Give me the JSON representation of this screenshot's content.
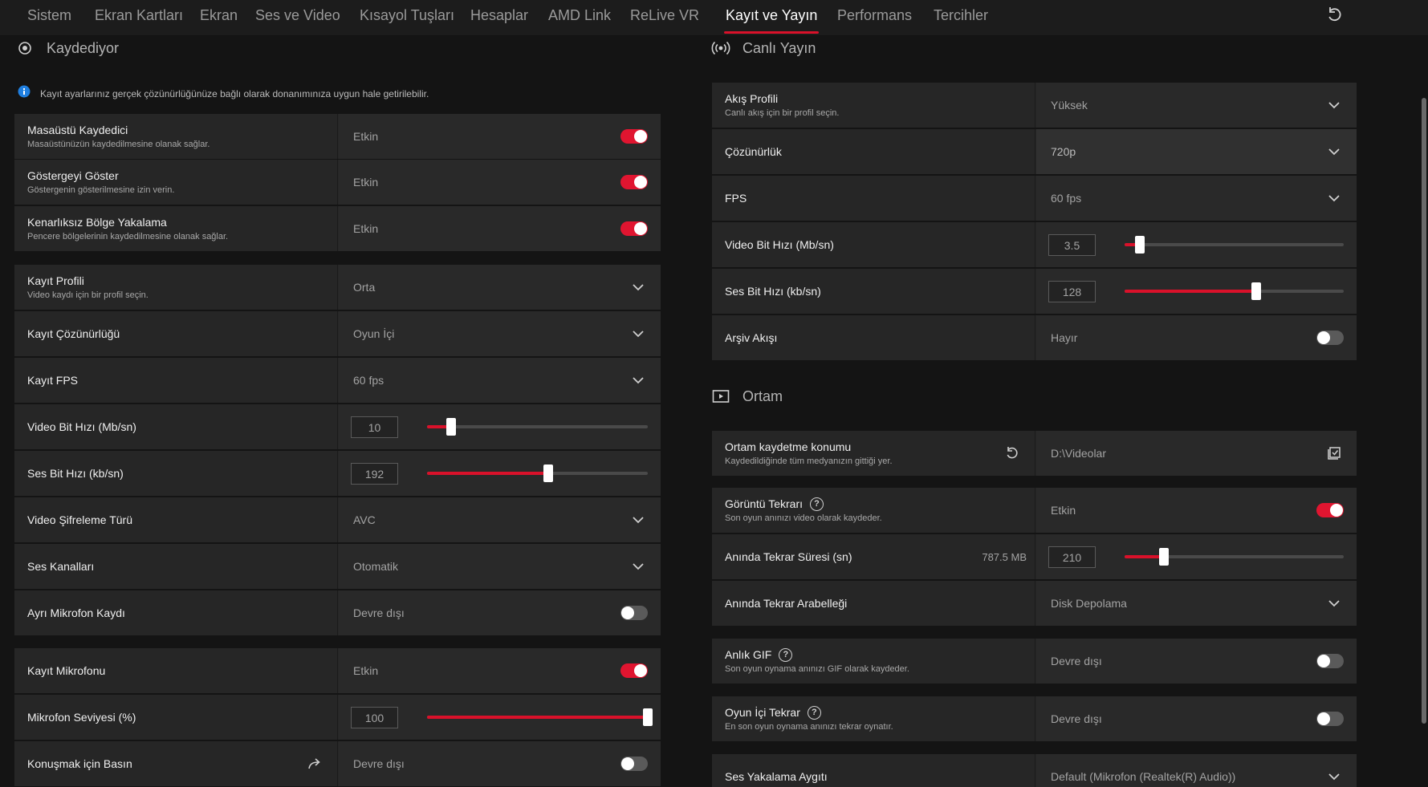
{
  "nav": {
    "tabs": [
      "Sistem",
      "Ekran Kartları",
      "Ekran",
      "Ses ve Video",
      "Kısayol Tuşları",
      "Hesaplar",
      "AMD Link",
      "ReLive VR",
      "Kayıt ve Yayın",
      "Performans",
      "Tercihler"
    ],
    "active": "Kayıt ve Yayın",
    "accent": "#d9112a",
    "reset_icon": "reset-icon"
  },
  "recording": {
    "title": "Kaydediyor",
    "info": "Kayıt ayarlarınız gerçek çözünürlüğünüze bağlı olarak donanımınıza uygun hale getirilebilir.",
    "rows": [
      {
        "label": "Masaüstü Kaydedici",
        "sub": "Masaüstünüzün kaydedilmesine olanak sağlar.",
        "value": "Etkin",
        "control": "toggle",
        "on": true
      },
      {
        "label": "Göstergeyi Göster",
        "sub": "Göstergenin gösterilmesine izin verin.",
        "value": "Etkin",
        "control": "toggle",
        "on": true
      },
      {
        "label": "Kenarlıksız Bölge Yakalama",
        "sub": "Pencere bölgelerinin kaydedilmesine olanak sağlar.",
        "value": "Etkin",
        "control": "toggle",
        "on": true
      },
      {
        "label": "Kayıt Profili",
        "sub": "Video kaydı için bir profil seçin.",
        "value": "Orta",
        "control": "dropdown"
      },
      {
        "label": "Kayıt Çözünürlüğü",
        "value": "Oyun İçi",
        "control": "dropdown"
      },
      {
        "label": "Kayıt FPS",
        "value": "60 fps",
        "control": "dropdown"
      },
      {
        "label": "Video Bit Hızı (Mb/sn)",
        "value": "10",
        "control": "slider",
        "level": 0.11
      },
      {
        "label": "Ses Bit Hızı (kb/sn)",
        "value": "192",
        "control": "slider",
        "level": 0.55
      },
      {
        "label": "Video Şifreleme Türü",
        "value": "AVC",
        "control": "dropdown"
      },
      {
        "label": "Ses Kanalları",
        "value": "Otomatik",
        "control": "dropdown"
      },
      {
        "label": "Ayrı Mikrofon Kaydı",
        "value": "Devre dışı",
        "control": "toggle",
        "on": false
      },
      {
        "label": "Kayıt Mikrofonu",
        "value": "Etkin",
        "control": "toggle",
        "on": true
      },
      {
        "label": "Mikrofon Seviyesi (%)",
        "value": "100",
        "control": "slider",
        "level": 1.0
      },
      {
        "label": "Konuşmak için Basın",
        "value": "Devre dışı",
        "control": "toggle",
        "on": false,
        "icon": "redirect-arrow-icon"
      }
    ]
  },
  "streaming": {
    "title": "Canlı Yayın",
    "rows": [
      {
        "label": "Akış Profili",
        "sub": "Canlı akış için bir profil seçin.",
        "value": "Yüksek",
        "control": "dropdown"
      },
      {
        "label": "Çözünürlük",
        "value": "720p",
        "control": "dropdown",
        "highlight": true
      },
      {
        "label": "FPS",
        "value": "60 fps",
        "control": "dropdown"
      },
      {
        "label": "Video Bit Hızı (Mb/sn)",
        "value": "3.5",
        "control": "slider",
        "level": 0.07
      },
      {
        "label": "Ses Bit Hızı (kb/sn)",
        "value": "128",
        "control": "slider",
        "level": 0.6
      },
      {
        "label": "Arşiv Akışı",
        "value": "Hayır",
        "control": "toggle",
        "on": false
      }
    ]
  },
  "media": {
    "title": "Ortam",
    "rows": [
      {
        "label": "Ortam kaydetme konumu",
        "sub": "Kaydedildiğinde tüm medyanızın gittiği yer.",
        "value": "D:\\Videolar",
        "control": "path",
        "left_icon": "reset-icon",
        "right_icon": "folder-select-icon"
      },
      {
        "label": "Görüntü Tekrarı",
        "sub": "Son oyun anınızı video olarak kaydeder.",
        "value": "Etkin",
        "control": "toggle",
        "on": true,
        "help": true
      },
      {
        "label": "Anında Tekrar Süresi (sn)",
        "value": "210",
        "size": "787.5 MB",
        "control": "slider",
        "level": 0.18
      },
      {
        "label": "Anında Tekrar Arabelleği",
        "value": "Disk Depolama",
        "control": "dropdown"
      },
      {
        "label": "Anlık GIF",
        "sub": "Son oyun oynama anınızı GIF olarak kaydeder.",
        "value": "Devre dışı",
        "control": "toggle",
        "on": false,
        "help": true
      },
      {
        "label": "Oyun İçi Tekrar",
        "sub": "En son oyun oynama anınızı tekrar oynatır.",
        "value": "Devre dışı",
        "control": "toggle",
        "on": false,
        "help": true
      },
      {
        "label": "Ses Yakalama Aygıtı",
        "value": "Default (Mikrofon (Realtek(R) Audio))",
        "control": "dropdown"
      }
    ]
  }
}
